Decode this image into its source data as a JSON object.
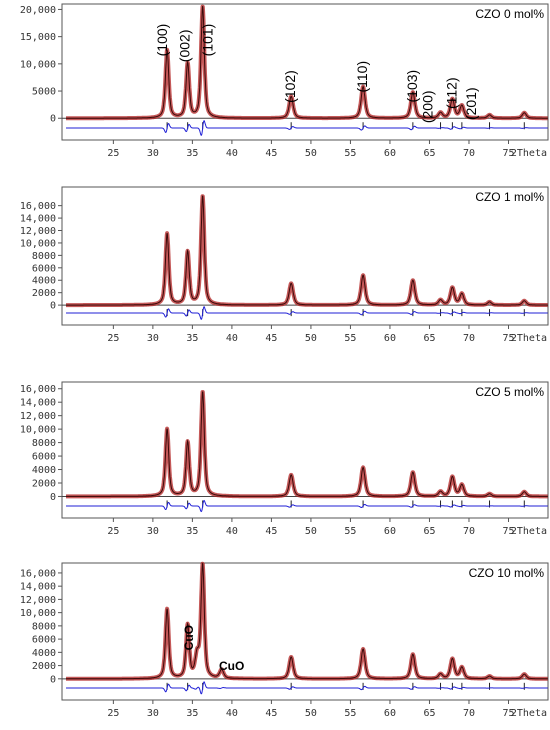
{
  "chart_data": [
    {
      "type": "line",
      "sample_label": "CZO 0 mol%",
      "xlabel": "2Theta",
      "xlim": [
        18.5,
        80
      ],
      "ylim": [
        -4000,
        21000
      ],
      "x_ticks": [
        25,
        30,
        35,
        40,
        45,
        50,
        55,
        60,
        65,
        70,
        75
      ],
      "y_ticks": [
        0,
        5000,
        10000,
        15000,
        20000
      ],
      "y_tick_labels": [
        "0",
        "5000",
        "10,000",
        "15,000",
        "20,000"
      ],
      "peaks": [
        {
          "pos": 31.8,
          "height": 12500,
          "width": 0.25
        },
        {
          "pos": 34.4,
          "height": 10000,
          "width": 0.25
        },
        {
          "pos": 36.3,
          "height": 20500,
          "width": 0.25
        },
        {
          "pos": 47.5,
          "height": 4000,
          "width": 0.3
        },
        {
          "pos": 56.6,
          "height": 5800,
          "width": 0.3
        },
        {
          "pos": 62.9,
          "height": 4800,
          "width": 0.3
        },
        {
          "pos": 66.4,
          "height": 1000,
          "width": 0.3
        },
        {
          "pos": 67.9,
          "height": 3500,
          "width": 0.3
        },
        {
          "pos": 69.1,
          "height": 2300,
          "width": 0.3
        },
        {
          "pos": 72.6,
          "height": 600,
          "width": 0.3
        },
        {
          "pos": 77.0,
          "height": 1000,
          "width": 0.3
        }
      ],
      "bragg_positions": [
        31.8,
        34.4,
        36.3,
        47.5,
        56.6,
        62.9,
        66.4,
        67.9,
        69.1,
        72.6,
        77.0
      ],
      "hkl_labels": [
        {
          "text": "(100)",
          "pos": 31.8
        },
        {
          "text": "(002)",
          "pos": 34.4
        },
        {
          "text": "(101)",
          "pos": 36.3
        },
        {
          "text": "(102)",
          "pos": 47.5
        },
        {
          "text": "(110)",
          "pos": 56.6
        },
        {
          "text": "(103)",
          "pos": 62.9
        },
        {
          "text": "(200)",
          "pos": 66.4
        },
        {
          "text": "(112)",
          "pos": 67.9
        },
        {
          "text": "(201)",
          "pos": 69.1
        }
      ],
      "annotations": []
    },
    {
      "type": "line",
      "sample_label": "CZO 1 mol%",
      "xlabel": "2Theta",
      "xlim": [
        18.5,
        80
      ],
      "ylim": [
        -3200,
        19000
      ],
      "x_ticks": [
        25,
        30,
        35,
        40,
        45,
        50,
        55,
        60,
        65,
        70,
        75
      ],
      "y_ticks": [
        0,
        2000,
        4000,
        6000,
        8000,
        10000,
        12000,
        14000,
        16000
      ],
      "y_tick_labels": [
        "0",
        "2000",
        "4000",
        "6000",
        "8000",
        "10,000",
        "12,000",
        "14,000",
        "16,000"
      ],
      "peaks": [
        {
          "pos": 31.8,
          "height": 11500,
          "width": 0.25
        },
        {
          "pos": 34.4,
          "height": 8500,
          "width": 0.25
        },
        {
          "pos": 36.3,
          "height": 17500,
          "width": 0.25
        },
        {
          "pos": 47.5,
          "height": 3500,
          "width": 0.3
        },
        {
          "pos": 56.6,
          "height": 4800,
          "width": 0.3
        },
        {
          "pos": 62.9,
          "height": 4000,
          "width": 0.3
        },
        {
          "pos": 66.4,
          "height": 800,
          "width": 0.3
        },
        {
          "pos": 67.9,
          "height": 2800,
          "width": 0.3
        },
        {
          "pos": 69.1,
          "height": 1800,
          "width": 0.3
        },
        {
          "pos": 72.6,
          "height": 500,
          "width": 0.3
        },
        {
          "pos": 77.0,
          "height": 700,
          "width": 0.3
        }
      ],
      "bragg_positions": [
        31.8,
        34.4,
        36.3,
        47.5,
        56.6,
        62.9,
        66.4,
        67.9,
        69.1,
        72.6,
        77.0
      ],
      "hkl_labels": [],
      "annotations": []
    },
    {
      "type": "line",
      "sample_label": "CZO 5 mol%",
      "xlabel": "2Theta",
      "xlim": [
        18.5,
        80
      ],
      "ylim": [
        -3200,
        17000
      ],
      "x_ticks": [
        25,
        30,
        35,
        40,
        45,
        50,
        55,
        60,
        65,
        70,
        75
      ],
      "y_ticks": [
        0,
        2000,
        4000,
        6000,
        8000,
        10000,
        12000,
        14000,
        16000
      ],
      "y_tick_labels": [
        "0",
        "2000",
        "4000",
        "6000",
        "8000",
        "10,000",
        "12,000",
        "14,000",
        "16,000"
      ],
      "peaks": [
        {
          "pos": 31.8,
          "height": 10000,
          "width": 0.25
        },
        {
          "pos": 34.4,
          "height": 8000,
          "width": 0.25
        },
        {
          "pos": 36.3,
          "height": 15500,
          "width": 0.25
        },
        {
          "pos": 47.5,
          "height": 3200,
          "width": 0.3
        },
        {
          "pos": 56.6,
          "height": 4300,
          "width": 0.3
        },
        {
          "pos": 62.9,
          "height": 3600,
          "width": 0.3
        },
        {
          "pos": 66.4,
          "height": 700,
          "width": 0.3
        },
        {
          "pos": 67.9,
          "height": 2900,
          "width": 0.3
        },
        {
          "pos": 69.1,
          "height": 1700,
          "width": 0.3
        },
        {
          "pos": 72.6,
          "height": 400,
          "width": 0.3
        },
        {
          "pos": 77.0,
          "height": 700,
          "width": 0.3
        }
      ],
      "bragg_positions": [
        31.8,
        34.4,
        36.3,
        47.5,
        56.6,
        62.9,
        66.4,
        67.9,
        69.1,
        72.6,
        77.0
      ],
      "hkl_labels": [],
      "annotations": []
    },
    {
      "type": "line",
      "sample_label": "CZO 10 mol%",
      "xlabel": "2Theta",
      "xlim": [
        18.5,
        80
      ],
      "ylim": [
        -3200,
        17500
      ],
      "x_ticks": [
        25,
        30,
        35,
        40,
        45,
        50,
        55,
        60,
        65,
        70,
        75
      ],
      "y_ticks": [
        0,
        2000,
        4000,
        6000,
        8000,
        10000,
        12000,
        14000,
        16000
      ],
      "y_tick_labels": [
        "0",
        "2000",
        "4000",
        "6000",
        "8000",
        "10,000",
        "12,000",
        "14,000",
        "16,000"
      ],
      "peaks": [
        {
          "pos": 31.8,
          "height": 10500,
          "width": 0.25
        },
        {
          "pos": 34.4,
          "height": 8000,
          "width": 0.25
        },
        {
          "pos": 35.6,
          "height": 3200,
          "width": 0.3
        },
        {
          "pos": 36.3,
          "height": 17000,
          "width": 0.25
        },
        {
          "pos": 38.7,
          "height": 1300,
          "width": 0.3
        },
        {
          "pos": 47.5,
          "height": 3300,
          "width": 0.3
        },
        {
          "pos": 56.6,
          "height": 4500,
          "width": 0.3
        },
        {
          "pos": 62.9,
          "height": 3700,
          "width": 0.3
        },
        {
          "pos": 66.4,
          "height": 700,
          "width": 0.3
        },
        {
          "pos": 67.9,
          "height": 3000,
          "width": 0.3
        },
        {
          "pos": 69.1,
          "height": 1700,
          "width": 0.3
        },
        {
          "pos": 72.6,
          "height": 400,
          "width": 0.3
        },
        {
          "pos": 77.0,
          "height": 700,
          "width": 0.3
        }
      ],
      "bragg_positions": [
        31.8,
        34.4,
        36.3,
        47.5,
        56.6,
        62.9,
        66.4,
        67.9,
        69.1,
        72.6,
        77.0
      ],
      "hkl_labels": [],
      "annotations": [
        {
          "text": "CuO",
          "pos": 35.6
        },
        {
          "text": "CuO",
          "pos": 38.7
        }
      ]
    }
  ]
}
